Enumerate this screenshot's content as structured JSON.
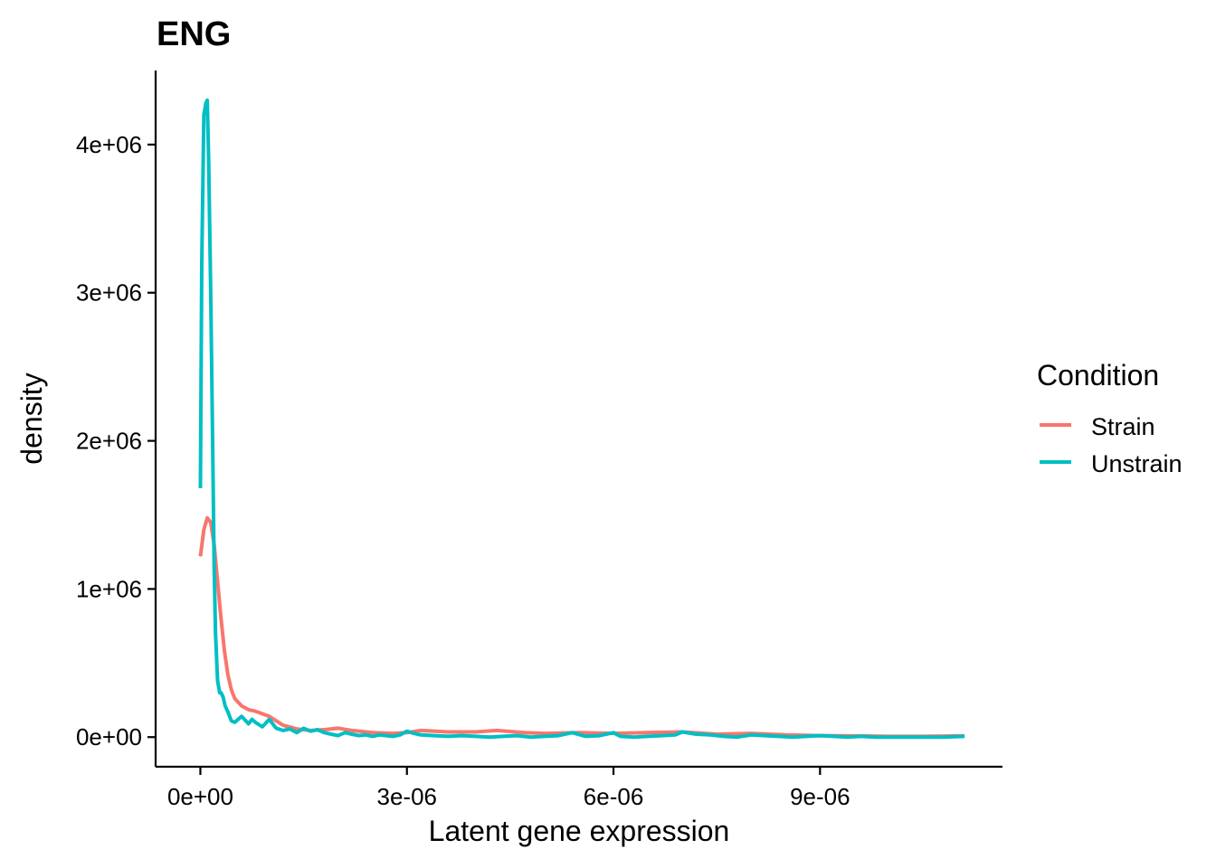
{
  "chart_data": {
    "type": "line",
    "title": "ENG",
    "xlabel": "Latent gene expression",
    "ylabel": "density",
    "xlim": [
      -6.5e-07,
      1.165e-05
    ],
    "ylim": [
      -200000,
      4500000
    ],
    "x_ticks": [
      0,
      3e-06,
      6e-06,
      9e-06
    ],
    "x_tick_labels": [
      "0e+00",
      "3e-06",
      "6e-06",
      "9e-06"
    ],
    "y_ticks": [
      0,
      1000000,
      2000000,
      3000000,
      4000000
    ],
    "y_tick_labels": [
      "0e+00",
      "1e+06",
      "2e+06",
      "3e+06",
      "4e+06"
    ],
    "grid": false,
    "legend": {
      "title": "Condition",
      "position": "right"
    },
    "series": [
      {
        "name": "Strain",
        "color": "#F8766D",
        "x": [
          0,
          5e-08,
          1e-07,
          1.5e-07,
          2e-07,
          2.5e-07,
          3e-07,
          3.5e-07,
          4e-07,
          4.5e-07,
          5e-07,
          6e-07,
          7e-07,
          8e-07,
          1e-06,
          1.2e-06,
          1.4e-06,
          1.6e-06,
          1.8e-06,
          2e-06,
          2.2e-06,
          2.5e-06,
          2.8e-06,
          3e-06,
          3.2e-06,
          3.6e-06,
          4e-06,
          4.3e-06,
          4.7e-06,
          5e-06,
          5.5e-06,
          6e-06,
          6.5e-06,
          7e-06,
          7.5e-06,
          8e-06,
          8.5e-06,
          9e-06,
          9.5e-06,
          1e-05,
          1.05e-05,
          1.11e-05
        ],
        "y": [
          1220000,
          1400000,
          1480000,
          1450000,
          1300000,
          1050000,
          800000,
          580000,
          420000,
          320000,
          260000,
          210000,
          185000,
          175000,
          140000,
          80000,
          55000,
          45000,
          50000,
          60000,
          45000,
          30000,
          25000,
          30000,
          45000,
          35000,
          35000,
          45000,
          30000,
          25000,
          30000,
          25000,
          30000,
          35000,
          20000,
          25000,
          15000,
          10000,
          8000,
          5000,
          5000,
          8000
        ]
      },
      {
        "name": "Unstrain",
        "color": "#00BFC4",
        "x": [
          0,
          2e-08,
          5e-08,
          8e-08,
          1e-07,
          1.2e-07,
          1.5e-07,
          1.8e-07,
          2e-07,
          2.2e-07,
          2.5e-07,
          2.8e-07,
          3e-07,
          3.3e-07,
          3.6e-07,
          4e-07,
          4.5e-07,
          5e-07,
          6e-07,
          7e-07,
          7.5e-07,
          8e-07,
          9e-07,
          1e-06,
          1.1e-06,
          1.2e-06,
          1.3e-06,
          1.4e-06,
          1.5e-06,
          1.6e-06,
          1.7e-06,
          1.8e-06,
          1.9e-06,
          2e-06,
          2.1e-06,
          2.2e-06,
          2.3e-06,
          2.4e-06,
          2.5e-06,
          2.6e-06,
          2.7e-06,
          2.8e-06,
          2.9e-06,
          3e-06,
          3.1e-06,
          3.2e-06,
          3.4e-06,
          3.6e-06,
          3.8e-06,
          4e-06,
          4.2e-06,
          4.4e-06,
          4.6e-06,
          4.8e-06,
          5e-06,
          5.2e-06,
          5.4e-06,
          5.6e-06,
          5.8e-06,
          6e-06,
          6.1e-06,
          6.3e-06,
          6.5e-06,
          6.7e-06,
          6.9e-06,
          7e-06,
          7.2e-06,
          7.4e-06,
          7.6e-06,
          7.8e-06,
          8e-06,
          8.2e-06,
          8.4e-06,
          8.6e-06,
          8.8e-06,
          9e-06,
          9.2e-06,
          9.4e-06,
          9.6e-06,
          9.8e-06,
          1e-05,
          1.02e-05,
          1.04e-05,
          1.06e-05,
          1.08e-05,
          1.11e-05
        ],
        "y": [
          1680000,
          3200000,
          4200000,
          4280000,
          4300000,
          3900000,
          3000000,
          1900000,
          1150000,
          700000,
          380000,
          300000,
          300000,
          270000,
          210000,
          170000,
          110000,
          100000,
          140000,
          90000,
          120000,
          100000,
          70000,
          120000,
          60000,
          45000,
          55000,
          30000,
          60000,
          40000,
          50000,
          30000,
          20000,
          10000,
          30000,
          20000,
          10000,
          15000,
          5000,
          15000,
          10000,
          5000,
          15000,
          40000,
          25000,
          15000,
          10000,
          5000,
          10000,
          5000,
          0,
          5000,
          10000,
          0,
          5000,
          10000,
          30000,
          5000,
          10000,
          30000,
          5000,
          0,
          5000,
          10000,
          15000,
          35000,
          20000,
          15000,
          5000,
          0,
          15000,
          10000,
          5000,
          0,
          5000,
          10000,
          5000,
          0,
          5000,
          0,
          0,
          0,
          0,
          0,
          0,
          5000
        ]
      }
    ]
  }
}
